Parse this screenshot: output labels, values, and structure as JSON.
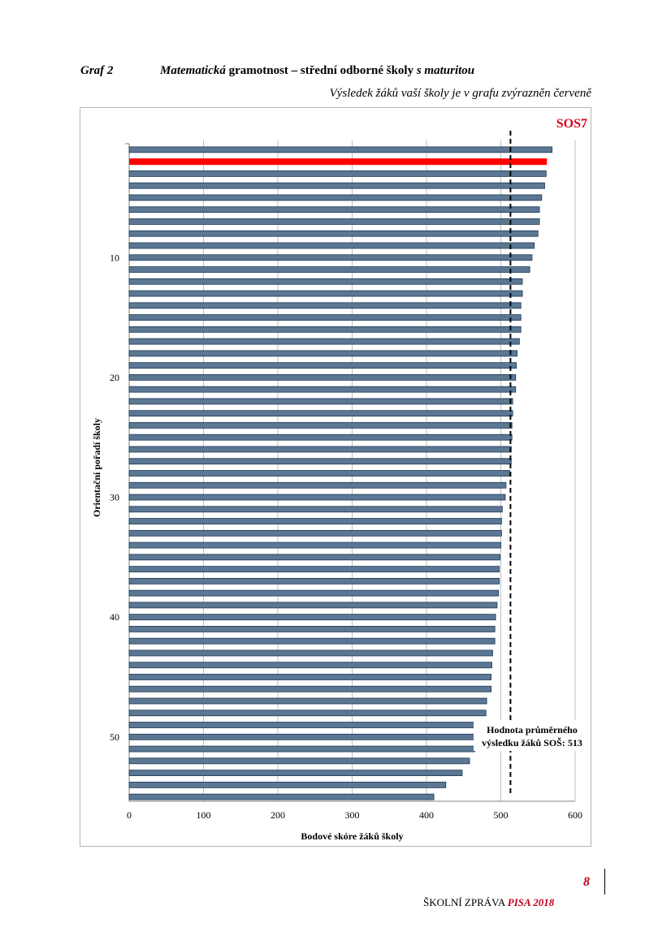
{
  "header": {
    "graf_label": "Graf 2",
    "title_part1": "Matematická",
    "title_part2": " gramotnost – střední odborné školy ",
    "title_part3": "s maturitou",
    "subtitle": "Výsledek žáků vaší školy je v grafu zvýrazněn červeně"
  },
  "chart_data": {
    "type": "bar",
    "orientation": "horizontal",
    "xlabel": "Bodové skóre žáků školy",
    "ylabel": "Orientační pořadí školy",
    "xlim": [
      0,
      600
    ],
    "x_ticks": [
      0,
      100,
      200,
      300,
      400,
      500,
      600
    ],
    "y_ticks": [
      10,
      20,
      30,
      40,
      50
    ],
    "grid": true,
    "highlight_label": "SOS7",
    "highlight_rank": 2,
    "average_value": 513,
    "average_label_line1": "Hodnota průměrného",
    "average_label_line2": "výsledku žáků SOŠ: 513",
    "colors": {
      "bar": "#5b7793",
      "bar_edge": "#1f3a57",
      "highlight": "#ff0000",
      "highlight_text": "#d9001b",
      "grid": "#bfbfbf"
    },
    "values": [
      569,
      562,
      561,
      559,
      555,
      552,
      552,
      550,
      545,
      542,
      539,
      529,
      529,
      527,
      527,
      527,
      525,
      522,
      521,
      520,
      520,
      516,
      516,
      515,
      515,
      514,
      514,
      512,
      507,
      506,
      502,
      501,
      501,
      500,
      499,
      498,
      498,
      497,
      495,
      493,
      492,
      492,
      489,
      488,
      487,
      487,
      481,
      480,
      470,
      466,
      465,
      458,
      448,
      426,
      410
    ]
  },
  "footer": {
    "page_number": "8",
    "report_text": "ŠKOLNÍ ZPRÁVA ",
    "report_accent": "PISA 2018"
  }
}
